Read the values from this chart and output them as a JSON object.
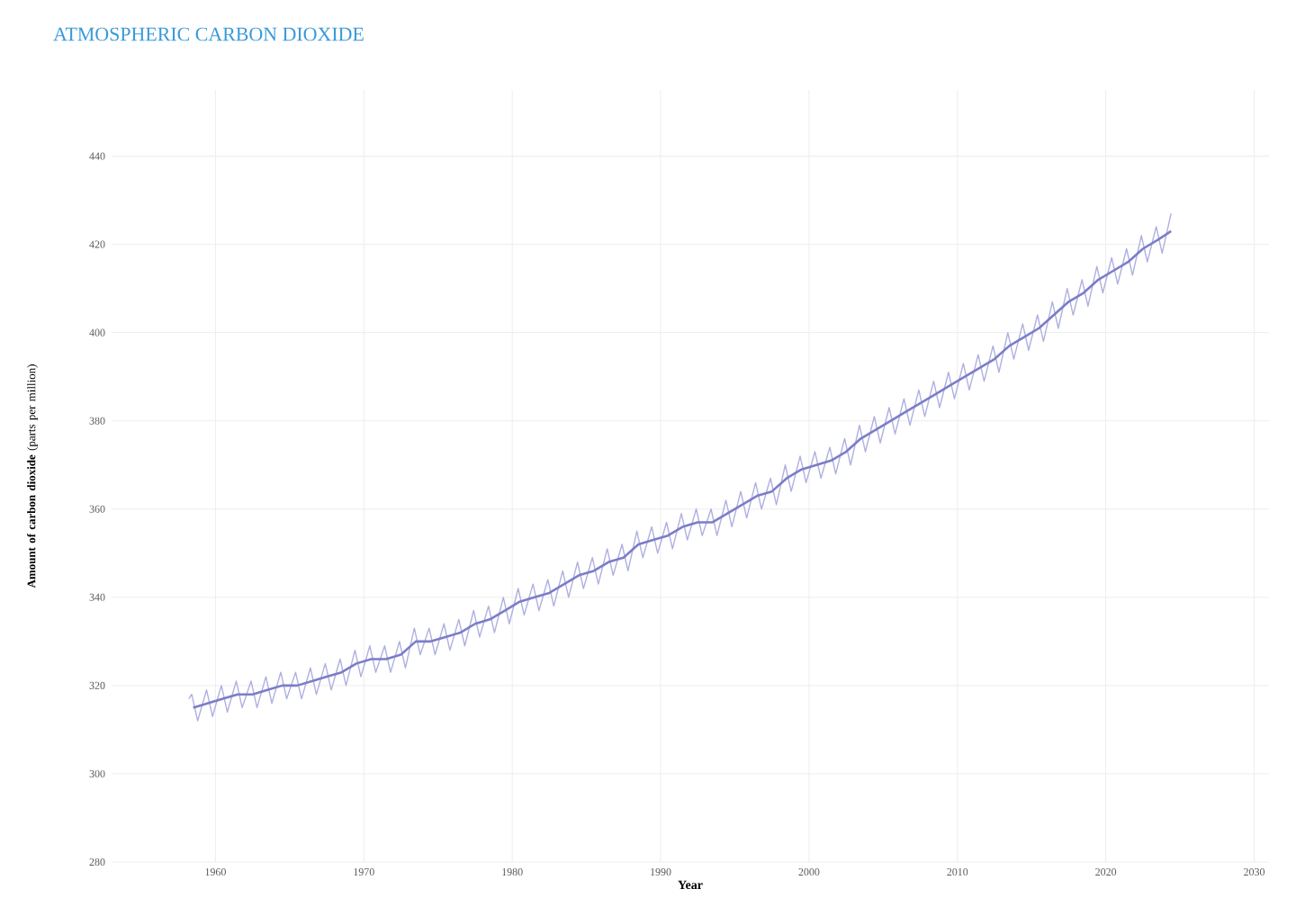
{
  "chart_data": {
    "type": "line",
    "title": "ATMOSPHERIC CARBON DIOXIDE",
    "xlabel": "Year",
    "ylabel": "**Amount of carbon dioxide** (parts per million)",
    "xlim": [
      1953,
      2031
    ],
    "ylim": [
      280,
      455
    ],
    "xticks": [
      1960,
      1970,
      1980,
      1990,
      2000,
      2010,
      2020,
      2030
    ],
    "yticks": [
      280,
      300,
      320,
      340,
      360,
      380,
      400,
      420,
      440
    ],
    "grid": true,
    "series": [
      {
        "color": "#aeb0e0",
        "x": [
          1958.2,
          1958.4,
          1958.8,
          1959.4,
          1959.8,
          1960.4,
          1960.8,
          1961.4,
          1961.8,
          1962.4,
          1962.8,
          1963.4,
          1963.8,
          1964.4,
          1964.8,
          1965.4,
          1965.8,
          1966.4,
          1966.8,
          1967.4,
          1967.8,
          1968.4,
          1968.8,
          1969.4,
          1969.8,
          1970.4,
          1970.8,
          1971.4,
          1971.8,
          1972.4,
          1972.8,
          1973.4,
          1973.8,
          1974.4,
          1974.8,
          1975.4,
          1975.8,
          1976.4,
          1976.8,
          1977.4,
          1977.8,
          1978.4,
          1978.8,
          1979.4,
          1979.8,
          1980.4,
          1980.8,
          1981.4,
          1981.8,
          1982.4,
          1982.8,
          1983.4,
          1983.8,
          1984.4,
          1984.8,
          1985.4,
          1985.8,
          1986.4,
          1986.8,
          1987.4,
          1987.8,
          1988.4,
          1988.8,
          1989.4,
          1989.8,
          1990.4,
          1990.8,
          1991.4,
          1991.8,
          1992.4,
          1992.8,
          1993.4,
          1993.8,
          1994.4,
          1994.8,
          1995.4,
          1995.8,
          1996.4,
          1996.8,
          1997.4,
          1997.8,
          1998.4,
          1998.8,
          1999.4,
          1999.8,
          2000.4,
          2000.8,
          2001.4,
          2001.8,
          2002.4,
          2002.8,
          2003.4,
          2003.8,
          2004.4,
          2004.8,
          2005.4,
          2005.8,
          2006.4,
          2006.8,
          2007.4,
          2007.8,
          2008.4,
          2008.8,
          2009.4,
          2009.8,
          2010.4,
          2010.8,
          2011.4,
          2011.8,
          2012.4,
          2012.8,
          2013.4,
          2013.8,
          2014.4,
          2014.8,
          2015.4,
          2015.8,
          2016.4,
          2016.8,
          2017.4,
          2017.8,
          2018.4,
          2018.8,
          2019.4,
          2019.8,
          2020.4,
          2020.8,
          2021.4,
          2021.8,
          2022.4,
          2022.8,
          2023.4,
          2023.8,
          2024.4
        ],
        "values": [
          317,
          318,
          312,
          319,
          313,
          320,
          314,
          321,
          315,
          321,
          315,
          322,
          316,
          323,
          317,
          323,
          317,
          324,
          318,
          325,
          319,
          326,
          320,
          328,
          322,
          329,
          323,
          329,
          323,
          330,
          324,
          333,
          327,
          333,
          327,
          334,
          328,
          335,
          329,
          337,
          331,
          338,
          332,
          340,
          334,
          342,
          336,
          343,
          337,
          344,
          338,
          346,
          340,
          348,
          342,
          349,
          343,
          351,
          345,
          352,
          346,
          355,
          349,
          356,
          350,
          357,
          351,
          359,
          353,
          360,
          354,
          360,
          354,
          362,
          356,
          364,
          358,
          366,
          360,
          367,
          361,
          370,
          364,
          372,
          366,
          373,
          367,
          374,
          368,
          376,
          370,
          379,
          373,
          381,
          375,
          383,
          377,
          385,
          379,
          387,
          381,
          389,
          383,
          391,
          385,
          393,
          387,
          395,
          389,
          397,
          391,
          400,
          394,
          402,
          396,
          404,
          398,
          407,
          401,
          410,
          404,
          412,
          406,
          415,
          409,
          417,
          411,
          419,
          413,
          422,
          416,
          424,
          418,
          427
        ]
      },
      {
        "color": "#7b7dc8",
        "x": [
          1958.5,
          1959.5,
          1960.5,
          1961.5,
          1962.5,
          1963.5,
          1964.5,
          1965.5,
          1966.5,
          1967.5,
          1968.5,
          1969.5,
          1970.5,
          1971.5,
          1972.5,
          1973.5,
          1974.5,
          1975.5,
          1976.5,
          1977.5,
          1978.5,
          1979.5,
          1980.5,
          1981.5,
          1982.5,
          1983.5,
          1984.5,
          1985.5,
          1986.5,
          1987.5,
          1988.5,
          1989.5,
          1990.5,
          1991.5,
          1992.5,
          1993.5,
          1994.5,
          1995.5,
          1996.5,
          1997.5,
          1998.5,
          1999.5,
          2000.5,
          2001.5,
          2002.5,
          2003.5,
          2004.5,
          2005.5,
          2006.5,
          2007.5,
          2008.5,
          2009.5,
          2010.5,
          2011.5,
          2012.5,
          2013.5,
          2014.5,
          2015.5,
          2016.5,
          2017.5,
          2018.5,
          2019.5,
          2020.5,
          2021.5,
          2022.5,
          2023.5,
          2024.4
        ],
        "values": [
          315,
          316,
          317,
          318,
          318,
          319,
          320,
          320,
          321,
          322,
          323,
          325,
          326,
          326,
          327,
          330,
          330,
          331,
          332,
          334,
          335,
          337,
          339,
          340,
          341,
          343,
          345,
          346,
          348,
          349,
          352,
          353,
          354,
          356,
          357,
          357,
          359,
          361,
          363,
          364,
          367,
          369,
          370,
          371,
          373,
          376,
          378,
          380,
          382,
          384,
          386,
          388,
          390,
          392,
          394,
          397,
          399,
          401,
          404,
          407,
          409,
          412,
          414,
          416,
          419,
          421,
          423
        ]
      }
    ]
  }
}
